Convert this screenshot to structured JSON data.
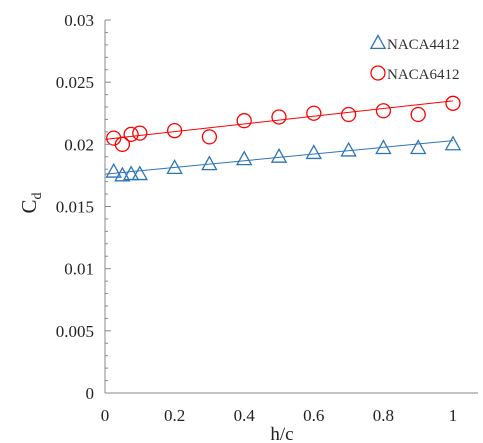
{
  "chart_data": {
    "type": "scatter",
    "xlabel": "h/c",
    "ylabel": "C",
    "ylabel_sub": "d",
    "xlim": [
      0,
      1
    ],
    "ylim": [
      0,
      0.03
    ],
    "x_ticks": [
      0,
      0.2,
      0.4,
      0.6,
      0.8,
      1
    ],
    "x_tick_labels": [
      "0",
      "0.2",
      "0.4",
      "0.6",
      "0.8",
      "1"
    ],
    "y_ticks": [
      0,
      0.005,
      0.01,
      0.015,
      0.02,
      0.025,
      0.03
    ],
    "y_tick_labels": [
      "0",
      "0.005",
      "0.01",
      "0.015",
      "0.02",
      "0.025",
      "0.03"
    ],
    "grid": false,
    "legend_position": "top-right",
    "series": [
      {
        "name": "NACA4412",
        "marker": "triangle",
        "color": "#2E75B6",
        "x": [
          0.025,
          0.05,
          0.075,
          0.1,
          0.2,
          0.3,
          0.4,
          0.5,
          0.6,
          0.7,
          0.8,
          0.9,
          1.0
        ],
        "y": [
          0.0178,
          0.0175,
          0.0176,
          0.0176,
          0.0181,
          0.0184,
          0.0188,
          0.019,
          0.0193,
          0.0195,
          0.0197,
          0.0197,
          0.02
        ],
        "trendline": {
          "x": [
            0,
            1
          ],
          "y": [
            0.0176,
            0.0203
          ]
        }
      },
      {
        "name": "NACA6412",
        "marker": "circle",
        "color": "#FF0000",
        "x": [
          0.025,
          0.05,
          0.075,
          0.1,
          0.2,
          0.3,
          0.4,
          0.5,
          0.6,
          0.7,
          0.8,
          0.9,
          1.0
        ],
        "y": [
          0.0205,
          0.02,
          0.0208,
          0.0209,
          0.0211,
          0.0206,
          0.0219,
          0.0222,
          0.0225,
          0.0224,
          0.0227,
          0.0224,
          0.0233
        ],
        "trendline": {
          "x": [
            0,
            1
          ],
          "y": [
            0.0204,
            0.0235
          ]
        }
      }
    ]
  }
}
